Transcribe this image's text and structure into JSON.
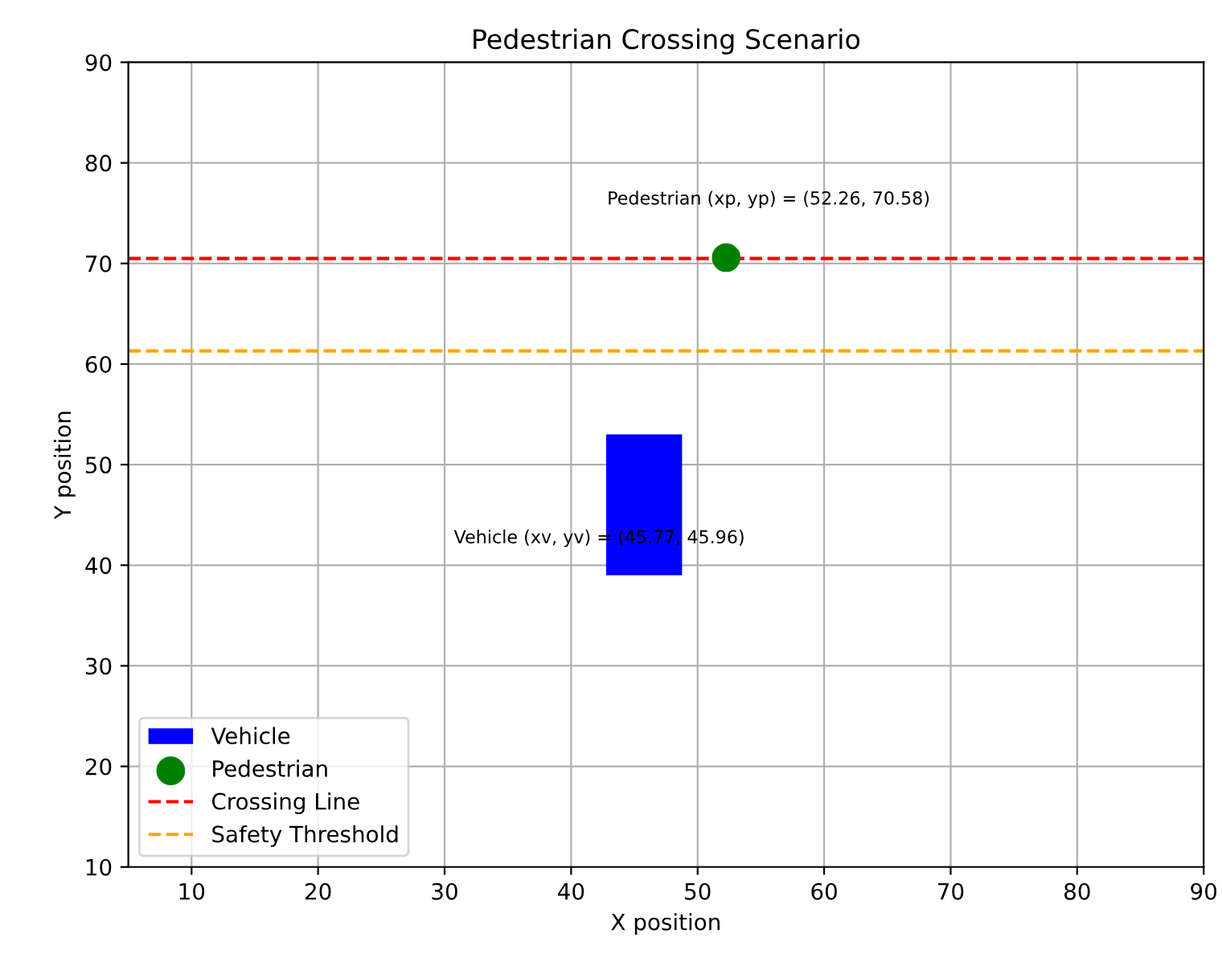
{
  "chart_data": {
    "type": "scatter",
    "title": "Pedestrian Crossing Scenario",
    "xlabel": "X position",
    "ylabel": "Y position",
    "xlim": [
      5,
      90
    ],
    "xticks": [
      10,
      20,
      30,
      40,
      50,
      60,
      70,
      80,
      90
    ],
    "ylim": [
      10,
      90
    ],
    "yticks": [
      10,
      20,
      30,
      40,
      50,
      60,
      70,
      80,
      90
    ],
    "grid": true,
    "legend": "bottom left",
    "series": [
      {
        "name": "Vehicle",
        "type": "bar",
        "color": "#0000ff",
        "x": [
          45.77
        ],
        "base": [
          39
        ],
        "values": [
          14
        ]
      },
      {
        "name": "Pedestrian",
        "color": "#008000",
        "marker": "circle",
        "x": [
          52.26
        ],
        "values": [
          70.58
        ]
      }
    ],
    "ref_lines": [
      {
        "axis": "y",
        "value": 70.5,
        "label": "Crossing Line",
        "color": "#ff0000",
        "line_style": "dashed"
      },
      {
        "axis": "y",
        "value": 61.3,
        "label": "Safety Threshold",
        "color": "#ffa500",
        "line_style": "dashed"
      }
    ],
    "annotations": [
      "Vehicle (xv, yv) = (45.77, 45.96)",
      {
        "text": "Pedestrian (xp, yp) = (52.26, 70.58)",
        "x": 52.26,
        "y": 70.58
      }
    ]
  }
}
